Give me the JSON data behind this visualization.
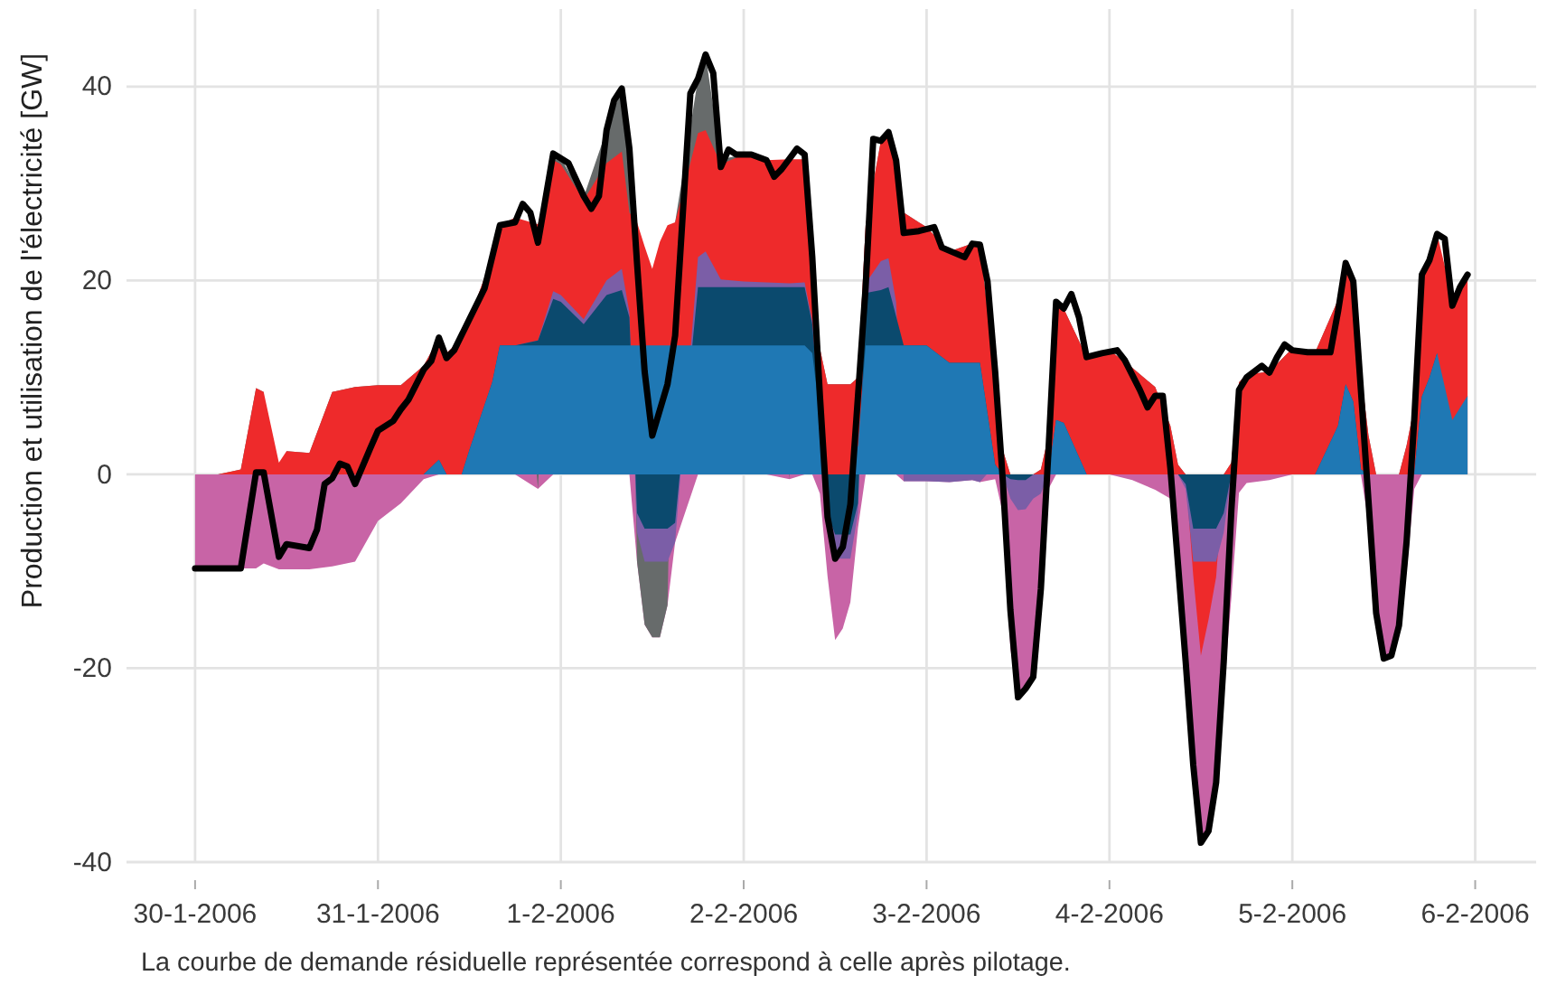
{
  "chart_data": {
    "type": "area",
    "ylabel": "Production et utilisation de l'électricité [GW]",
    "annotations": [
      "La courbe de demande résiduelle représentée correspond à celle après pilotage."
    ],
    "xlim": [
      "2006-01-29T15:00",
      "2006-02-06T08:00"
    ],
    "xticks": [
      {
        "value": "2006-01-30",
        "label": "30-1-2006"
      },
      {
        "value": "2006-01-31",
        "label": "31-1-2006"
      },
      {
        "value": "2006-02-01",
        "label": "1-2-2006"
      },
      {
        "value": "2006-02-02",
        "label": "2-2-2006"
      },
      {
        "value": "2006-02-03",
        "label": "3-2-2006"
      },
      {
        "value": "2006-02-04",
        "label": "4-2-2006"
      },
      {
        "value": "2006-02-05",
        "label": "5-2-2006"
      },
      {
        "value": "2006-02-06",
        "label": "6-2-2006"
      }
    ],
    "ylim": [
      -40,
      48
    ],
    "yticks": [
      -40,
      -20,
      0,
      20,
      40
    ],
    "grid": true,
    "x": [
      "2006-01-30T00:00",
      "2006-01-30T03:00",
      "2006-01-30T06:00",
      "2006-01-30T08:00",
      "2006-01-30T09:00",
      "2006-01-30T11:00",
      "2006-01-30T12:00",
      "2006-01-30T15:00",
      "2006-01-30T18:00",
      "2006-01-30T21:00",
      "2006-01-31T00:00",
      "2006-01-31T03:00",
      "2006-01-31T06:00",
      "2006-01-31T08:00",
      "2006-01-31T09:00",
      "2006-01-31T11:00",
      "2006-01-31T12:00",
      "2006-01-31T15:00",
      "2006-01-31T16:00",
      "2006-01-31T18:00",
      "2006-01-31T21:00",
      "2006-01-31T23:00",
      "2006-02-01T00:00",
      "2006-02-01T03:00",
      "2006-02-01T06:00",
      "2006-02-01T08:00",
      "2006-02-01T09:00",
      "2006-02-01T10:00",
      "2006-02-01T11:00",
      "2006-02-01T12:00",
      "2006-02-01T13:00",
      "2006-02-01T14:00",
      "2006-02-01T15:00",
      "2006-02-01T18:00",
      "2006-02-01T19:00",
      "2006-02-01T21:00",
      "2006-02-02T00:00",
      "2006-02-02T03:00",
      "2006-02-02T06:00",
      "2006-02-02T08:00",
      "2006-02-02T09:00",
      "2006-02-02T10:00",
      "2006-02-02T11:00",
      "2006-02-02T12:00",
      "2006-02-02T13:00",
      "2006-02-02T14:00",
      "2006-02-02T15:00",
      "2006-02-02T16:00",
      "2006-02-02T18:00",
      "2006-02-02T19:00",
      "2006-02-02T20:00",
      "2006-02-02T21:00",
      "2006-02-03T00:00",
      "2006-02-03T03:00",
      "2006-02-03T06:00",
      "2006-02-03T07:00",
      "2006-02-03T09:00",
      "2006-02-03T10:00",
      "2006-02-03T11:00",
      "2006-02-03T12:00",
      "2006-02-03T13:00",
      "2006-02-03T14:00",
      "2006-02-03T15:00",
      "2006-02-03T16:00",
      "2006-02-03T17:00",
      "2006-02-03T18:00",
      "2006-02-03T21:00",
      "2006-02-04T00:00",
      "2006-02-04T03:00",
      "2006-02-04T06:00",
      "2006-02-04T08:00",
      "2006-02-04T09:00",
      "2006-02-04T10:00",
      "2006-02-04T11:00",
      "2006-02-04T12:00",
      "2006-02-04T13:00",
      "2006-02-04T14:00",
      "2006-02-04T15:00",
      "2006-02-04T16:00",
      "2006-02-04T17:00",
      "2006-02-04T18:00",
      "2006-02-04T21:00",
      "2006-02-05T00:00",
      "2006-02-05T03:00",
      "2006-02-05T06:00",
      "2006-02-05T07:00",
      "2006-02-05T08:00",
      "2006-02-05T09:00",
      "2006-02-05T10:00",
      "2006-02-05T11:00",
      "2006-02-05T12:00",
      "2006-02-05T13:00",
      "2006-02-05T14:00",
      "2006-02-05T15:00",
      "2006-02-05T16:00",
      "2006-02-05T17:00",
      "2006-02-05T18:00",
      "2006-02-05T19:00",
      "2006-02-05T21:00",
      "2006-02-05T23:00"
    ],
    "series": [
      {
        "color": "#c864a6",
        "values": [
          -9.7,
          -9.7,
          -9.7,
          -9.7,
          -9.2,
          -9.8,
          -9.8,
          -9.8,
          -9.5,
          -9,
          -4.8,
          -3,
          -0.5,
          0,
          0,
          0,
          0,
          0,
          0,
          0,
          -1.5,
          0,
          0,
          0,
          0,
          0,
          0,
          -9,
          -15.5,
          -16.8,
          -16.8,
          -13.5,
          -7,
          0,
          0,
          0,
          0,
          0,
          -0.5,
          0,
          0,
          -2,
          -10.5,
          -17.1,
          -15.9,
          -13.2,
          -5.5,
          0,
          0,
          0,
          0,
          -0.7,
          -0.7,
          -0.8,
          -0.6,
          -0.8,
          -0.5,
          -4,
          -18,
          -23,
          -22.3,
          -21.3,
          -12.3,
          -1.5,
          0,
          0,
          0,
          0,
          -0.6,
          -1.6,
          -2.5,
          -8,
          -19.3,
          -30,
          -38,
          -36.8,
          -33,
          -22.4,
          -12.7,
          -1.9,
          -0.9,
          -0.6,
          0,
          0,
          0,
          0,
          0,
          0,
          -5,
          -14.3,
          -19,
          -18.6,
          -15.6,
          -10,
          -1.5,
          0,
          0,
          0,
          0,
          0
        ]
      },
      {
        "color": "#676b6b",
        "values": [
          0,
          0,
          0.5,
          8.9,
          8.5,
          null,
          2.4,
          2.2,
          8.5,
          9,
          9.2,
          9.2,
          11.2,
          14.1,
          12.5,
          14,
          16,
          22.5,
          25.7,
          26.5,
          -1.5,
          33.1,
          32.6,
          28.6,
          35.5,
          39.8,
          33.6,
          -9,
          -15.5,
          -16.8,
          -16.8,
          -13.5,
          26,
          40.8,
          43.3,
          32.5,
          33,
          32.4,
          -0.5,
          33,
          22.4,
          13,
          9.3,
          9.3,
          9.3,
          9.3,
          10,
          25.7,
          34.4,
          35.3,
          33,
          27,
          25.5,
          23,
          23.8,
          23.7,
          10,
          2.5,
          0,
          0,
          0,
          0,
          0.5,
          4,
          17.8,
          17.1,
          12.1,
          12.8,
          11,
          9,
          5,
          1,
          0,
          0,
          0,
          0,
          0,
          0,
          1.2,
          9.5,
          10.3,
          10.6,
          13,
          12.6,
          18,
          21.8,
          20,
          10.5,
          4,
          0,
          0,
          0,
          0,
          3,
          7,
          20.5,
          22.1,
          24.8,
          null,
          null
        ]
      },
      {
        "color": "#ee2a2b",
        "values": [
          0,
          0,
          0.5,
          8.9,
          8.5,
          1.2,
          2.4,
          2.2,
          8.5,
          9,
          9.2,
          9.2,
          11.2,
          14.1,
          12.5,
          14,
          16,
          22.5,
          25.7,
          26.5,
          25.8,
          32.4,
          32,
          28.3,
          32.1,
          33.3,
          27,
          26,
          23.5,
          21.2,
          24,
          25.7,
          26,
          35.2,
          35.5,
          32,
          33,
          32.4,
          32.5,
          32.5,
          22.4,
          13,
          9.3,
          9.3,
          9.3,
          9.3,
          10,
          25.7,
          34.4,
          35.3,
          33,
          27,
          25.5,
          23,
          23.8,
          23.7,
          10,
          2.5,
          0,
          0,
          0,
          0,
          0.5,
          4,
          17.8,
          17.1,
          12.1,
          12.8,
          11,
          9,
          5,
          1,
          0,
          -10.5,
          -18.7,
          -15,
          -10.6,
          0,
          1.2,
          9.5,
          10.3,
          10.6,
          13,
          12.6,
          18,
          21.8,
          20,
          10.5,
          4,
          0,
          0,
          0,
          0,
          3,
          7,
          20.5,
          22.1,
          24.8,
          18.2,
          20.6
        ]
      },
      {
        "color": "#7b5ea7",
        "values": [
          0,
          0,
          0,
          0,
          0,
          0,
          0,
          0,
          0,
          0,
          0,
          0,
          0,
          1.5,
          0,
          0,
          2.5,
          9.5,
          13.3,
          13.3,
          13.8,
          18.9,
          18.5,
          16,
          20,
          21.2,
          16.7,
          -6,
          -9,
          -9,
          -9,
          -9,
          -7,
          22.4,
          23,
          20.1,
          19.9,
          19.8,
          19.7,
          19.8,
          15.8,
          6,
          -5.5,
          -8.7,
          -8.7,
          -8.7,
          -4,
          19.7,
          22,
          22.3,
          17.8,
          -0.7,
          -0.7,
          -0.8,
          -0.6,
          -0.8,
          1,
          0,
          -2.5,
          -3.7,
          -3.6,
          -2.5,
          -2,
          0,
          5.6,
          5.3,
          0,
          0,
          0,
          0,
          0,
          0,
          -1.5,
          -9,
          -9,
          -9,
          -9,
          -6,
          0,
          0,
          0,
          0,
          0,
          0,
          5,
          9.3,
          7.5,
          0.5,
          0,
          0,
          0,
          0,
          0,
          0,
          0,
          8,
          10,
          12.5,
          null,
          null
        ]
      },
      {
        "color": "#0b4a6e",
        "values": [
          0,
          0,
          0,
          0,
          0,
          0,
          0,
          0,
          0,
          0,
          0,
          0,
          0,
          1.5,
          0,
          0,
          2.5,
          9.5,
          13.3,
          13.3,
          13.8,
          18.1,
          17.8,
          15.5,
          18.5,
          19,
          16.2,
          -4,
          -5.6,
          -5.6,
          -5.6,
          -5.6,
          -5,
          19.3,
          19.3,
          19.3,
          19.3,
          19.3,
          19.3,
          19.3,
          15.5,
          6,
          -4,
          -6.2,
          -6.2,
          -6.2,
          -3,
          18.7,
          19,
          19.3,
          16.3,
          13.3,
          13.3,
          11.5,
          11.5,
          11.5,
          1,
          0,
          -0.5,
          -0.6,
          -0.6,
          0,
          0,
          0,
          5.6,
          5.3,
          0,
          0,
          0,
          0,
          0,
          0,
          -1,
          -5.6,
          -5.6,
          -5.6,
          -5.6,
          -4,
          0,
          0,
          0,
          0,
          0,
          0,
          5,
          9.3,
          7.5,
          0.5,
          0,
          0,
          0,
          0,
          0,
          0,
          0,
          8,
          10,
          12.5,
          null,
          null
        ]
      },
      {
        "color": "#1f78b4",
        "values": [
          0,
          0,
          0,
          0,
          0,
          0,
          0,
          0,
          0,
          0,
          0,
          0,
          0,
          1.5,
          0,
          0,
          2.5,
          9.5,
          13.3,
          13.3,
          13.3,
          13.3,
          13.3,
          13.3,
          13.3,
          13.3,
          13.3,
          13.3,
          13.3,
          13.3,
          13.3,
          13.3,
          13.3,
          13.3,
          13.3,
          13.3,
          13.3,
          13.3,
          13.3,
          13.3,
          12.5,
          6,
          0,
          0,
          0,
          0,
          3,
          13.3,
          13.3,
          13.3,
          13.3,
          13.3,
          13.3,
          11.5,
          11.5,
          11.5,
          1,
          0,
          0,
          0,
          0,
          0,
          0,
          0,
          5.6,
          5.3,
          0,
          0,
          0,
          0,
          0,
          0,
          0,
          0,
          0,
          0,
          0,
          0,
          0,
          0,
          0,
          0,
          0,
          0,
          5,
          9.3,
          7.5,
          0.5,
          0,
          0,
          0,
          0,
          0,
          0,
          0,
          8,
          10,
          12.5,
          5.6,
          8.1
        ]
      },
      {
        "type": "line",
        "color": "#000000",
        "x": [
          "2006-01-30T00:00",
          "2006-01-30T06:00",
          "2006-01-30T08:00",
          "2006-01-30T09:00",
          "2006-01-30T11:00",
          "2006-01-30T12:00",
          "2006-01-30T15:00",
          "2006-01-30T16:00",
          "2006-01-30T17:00",
          "2006-01-30T18:00",
          "2006-01-30T19:00",
          "2006-01-30T20:00",
          "2006-01-30T21:00",
          "2006-01-30T23:00",
          "2006-01-31T00:00",
          "2006-01-31T02:00",
          "2006-01-31T03:00",
          "2006-01-31T04:00",
          "2006-01-31T06:00",
          "2006-01-31T07:00",
          "2006-01-31T08:00",
          "2006-01-31T09:00",
          "2006-01-31T10:00",
          "2006-01-31T12:00",
          "2006-01-31T14:00",
          "2006-01-31T16:00",
          "2006-01-31T18:00",
          "2006-01-31T19:00",
          "2006-01-31T20:00",
          "2006-01-31T21:00",
          "2006-01-31T23:00",
          "2006-02-01T01:00",
          "2006-02-01T03:00",
          "2006-02-01T04:00",
          "2006-02-01T05:00",
          "2006-02-01T06:00",
          "2006-02-01T07:00",
          "2006-02-01T08:00",
          "2006-02-01T09:00",
          "2006-02-01T10:00",
          "2006-02-01T11:00",
          "2006-02-01T12:00",
          "2006-02-01T14:00",
          "2006-02-01T15:00",
          "2006-02-01T16:00",
          "2006-02-01T17:00",
          "2006-02-01T18:00",
          "2006-02-01T19:00",
          "2006-02-01T20:00",
          "2006-02-01T21:00",
          "2006-02-01T22:00",
          "2006-02-01T23:00",
          "2006-02-02T01:00",
          "2006-02-02T03:00",
          "2006-02-02T04:00",
          "2006-02-02T05:00",
          "2006-02-02T07:00",
          "2006-02-02T08:00",
          "2006-02-02T09:00",
          "2006-02-02T10:00",
          "2006-02-02T11:00",
          "2006-02-02T12:00",
          "2006-02-02T13:00",
          "2006-02-02T14:00",
          "2006-02-02T16:00",
          "2006-02-02T17:00",
          "2006-02-02T18:00",
          "2006-02-02T19:00",
          "2006-02-02T20:00",
          "2006-02-02T21:00",
          "2006-02-02T23:00",
          "2006-02-03T01:00",
          "2006-02-03T02:00",
          "2006-02-03T05:00",
          "2006-02-03T06:00",
          "2006-02-03T07:00",
          "2006-02-03T08:00",
          "2006-02-03T09:00",
          "2006-02-03T10:00",
          "2006-02-03T11:00",
          "2006-02-03T12:00",
          "2006-02-03T13:00",
          "2006-02-03T14:00",
          "2006-02-03T15:00",
          "2006-02-03T16:00",
          "2006-02-03T17:00",
          "2006-02-03T18:00",
          "2006-02-03T19:00",
          "2006-02-03T20:00",
          "2006-02-03T21:00",
          "2006-02-03T23:00",
          "2006-02-04T01:00",
          "2006-02-04T02:00",
          "2006-02-04T04:00",
          "2006-02-04T05:00",
          "2006-02-04T06:00",
          "2006-02-04T07:00",
          "2006-02-04T08:00",
          "2006-02-04T09:00",
          "2006-02-04T10:00",
          "2006-02-04T11:00",
          "2006-02-04T12:00",
          "2006-02-04T13:00",
          "2006-02-04T14:00",
          "2006-02-04T15:00",
          "2006-02-04T16:00",
          "2006-02-04T17:00",
          "2006-02-04T18:00",
          "2006-02-04T20:00",
          "2006-02-04T21:00",
          "2006-02-04T22:00",
          "2006-02-04T23:00",
          "2006-02-05T00:00",
          "2006-02-05T02:00",
          "2006-02-05T05:00",
          "2006-02-05T06:00",
          "2006-02-05T07:00",
          "2006-02-05T08:00",
          "2006-02-05T09:00",
          "2006-02-05T11:00",
          "2006-02-05T12:00",
          "2006-02-05T13:00",
          "2006-02-05T14:00",
          "2006-02-05T15:00",
          "2006-02-05T16:00",
          "2006-02-05T17:00",
          "2006-02-05T18:00",
          "2006-02-05T19:00",
          "2006-02-05T20:00",
          "2006-02-05T21:00",
          "2006-02-05T22:00",
          "2006-02-05T23:00"
        ],
        "values": [
          -9.7,
          -9.7,
          0.2,
          0.2,
          -8.5,
          -7.2,
          -7.6,
          -5.7,
          -1,
          -0.4,
          1.1,
          0.8,
          -1,
          2.7,
          4.5,
          5.5,
          6.7,
          7.7,
          10.8,
          11.7,
          14.1,
          12,
          12.8,
          16,
          19.2,
          25.7,
          26,
          27.9,
          27,
          23.9,
          33.1,
          32.1,
          28.7,
          27.4,
          28.7,
          35.5,
          38.6,
          39.8,
          33.6,
          21.8,
          10.6,
          4,
          9.3,
          14.3,
          26.8,
          39.3,
          40.8,
          43.3,
          41.4,
          31.7,
          33.5,
          33,
          33,
          32.4,
          30.7,
          31.5,
          33.6,
          33,
          22.4,
          8.1,
          -4.4,
          -8.7,
          -7.5,
          -3.1,
          19.3,
          34.6,
          34.4,
          35.3,
          32.4,
          24.9,
          25.1,
          25.5,
          23.4,
          22.4,
          23.8,
          23.7,
          19.9,
          10.6,
          -0.6,
          -14,
          -23,
          -22.1,
          -20.9,
          -11.8,
          2.5,
          17.8,
          17.1,
          18.6,
          16.2,
          12.1,
          12.5,
          12.8,
          11.8,
          8.7,
          6.9,
          8.1,
          8.1,
          0.6,
          -9.3,
          -19.3,
          -30,
          -38,
          -36.8,
          -31.8,
          -19.3,
          -3.7,
          8.7,
          10,
          11.2,
          10.5,
          12.1,
          13.4,
          12.8,
          12.6,
          12.6,
          16.8,
          21.8,
          19.9,
          8.7,
          -14.3,
          -19,
          -18.7,
          -15.6,
          -6.9,
          5.6,
          20.6,
          22.1,
          24.8,
          24.3,
          17.4,
          19.3,
          20.6
        ]
      }
    ]
  }
}
